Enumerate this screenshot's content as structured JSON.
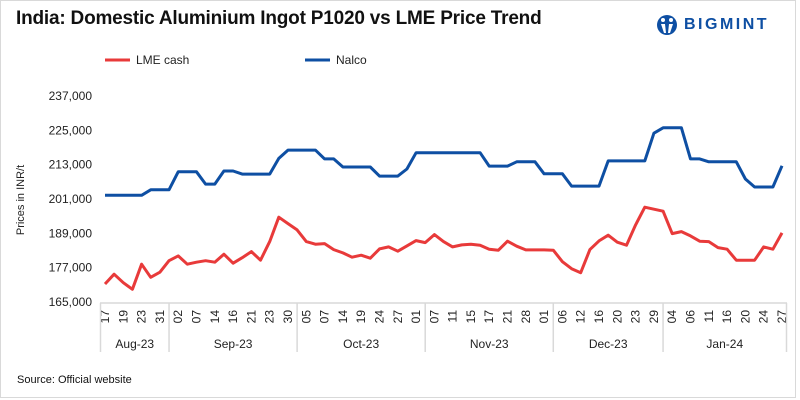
{
  "title": "India: Domestic Aluminium Ingot P1020 vs LME Price Trend",
  "logo_text": "BIGMINT",
  "source": "Source: Official website",
  "chart_data": {
    "type": "line",
    "title": "India: Domestic Aluminium Ingot P1020 vs LME Price Trend",
    "ylabel": "Prices in INR/t",
    "xlabel": "",
    "ylim": [
      165000,
      237000
    ],
    "yticks": [
      "165,000",
      "177,000",
      "189,000",
      "201,000",
      "213,000",
      "225,000",
      "237,000"
    ],
    "ytick_values": [
      165000,
      177000,
      189000,
      201000,
      213000,
      225000,
      237000
    ],
    "grid": false,
    "legend_position": "top-left",
    "x_tick_labels": [
      "17",
      "19",
      "23",
      "31",
      "02",
      "07",
      "14",
      "16",
      "21",
      "23",
      "30",
      "05",
      "07",
      "14",
      "19",
      "24",
      "27",
      "01",
      "07",
      "11",
      "15",
      "17",
      "21",
      "28",
      "01",
      "06",
      "12",
      "16",
      "20",
      "23",
      "29",
      "04",
      "06",
      "11",
      "16",
      "20",
      "24",
      "27"
    ],
    "months": [
      {
        "label": "Aug-23",
        "ticks": 4
      },
      {
        "label": "Sep-23",
        "ticks": 7
      },
      {
        "label": "Oct-23",
        "ticks": 7
      },
      {
        "label": "Nov-23",
        "ticks": 7
      },
      {
        "label": "Dec-23",
        "ticks": 6
      },
      {
        "label": "Jan-24",
        "ticks": 7
      }
    ],
    "series": [
      {
        "name": "LME cash",
        "color": "#e83a3a",
        "values": [
          171300,
          174700,
          171750,
          169450,
          178200,
          173650,
          175400,
          179450,
          181100,
          178200,
          178900,
          179450,
          178900,
          181700,
          178550,
          180500,
          182600,
          179600,
          186100,
          194650,
          192400,
          190200,
          186100,
          185200,
          185400,
          183300,
          182150,
          180650,
          181350,
          180300,
          183550,
          184250,
          182750,
          184600,
          186450,
          185750,
          188550,
          186100,
          184250,
          184950,
          185200,
          184850,
          183450,
          183100,
          186250,
          184500,
          183200,
          183200,
          183200,
          183100,
          179100,
          176650,
          175250,
          183300,
          186350,
          188350,
          185900,
          184850,
          191950,
          198150,
          197450,
          196750,
          188900,
          189600,
          188100,
          186250,
          186100,
          184000,
          183450,
          179600,
          179600,
          179600,
          184250,
          183450,
          189150
        ]
      },
      {
        "name": "Nalco",
        "color": "#0e4fa3",
        "values": [
          202300,
          202300,
          202300,
          202300,
          202300,
          204200,
          204200,
          204200,
          210500,
          210500,
          210500,
          206200,
          206200,
          210800,
          210800,
          209700,
          209700,
          209700,
          209700,
          215200,
          218100,
          218100,
          218100,
          218100,
          215000,
          215000,
          212200,
          212200,
          212200,
          212200,
          209000,
          209000,
          209000,
          211500,
          217200,
          217200,
          217200,
          217200,
          217200,
          217200,
          217200,
          217200,
          212500,
          212500,
          212500,
          214000,
          214000,
          214000,
          209800,
          209800,
          209800,
          205500,
          205500,
          205500,
          205500,
          214300,
          214300,
          214300,
          214300,
          214300,
          224000,
          225900,
          225900,
          225900,
          215000,
          215000,
          214000,
          214000,
          214000,
          214000,
          208000,
          205200,
          205200,
          205200,
          212600
        ]
      }
    ]
  }
}
